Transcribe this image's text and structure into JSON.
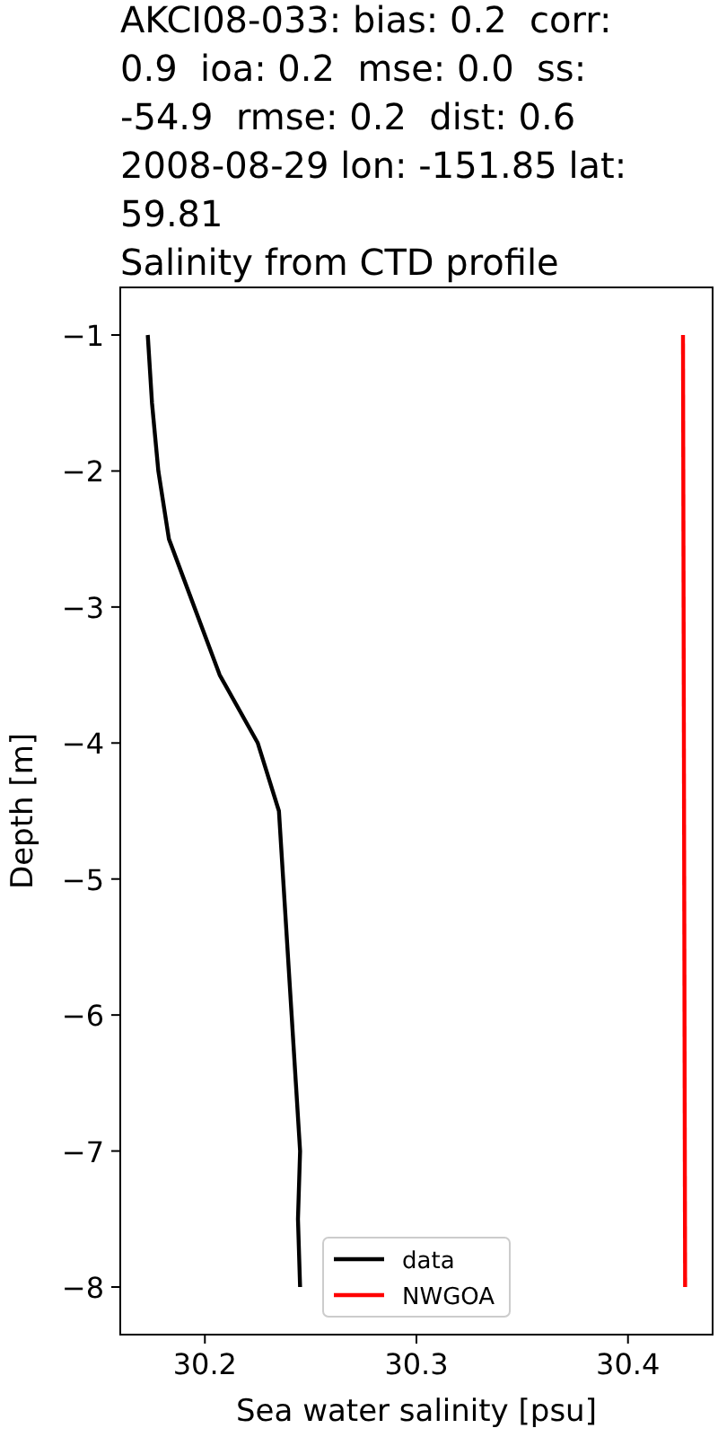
{
  "chart_data": {
    "type": "line",
    "title": "AKCI08-033: bias: 0.2  corr: 0.9  ioa: 0.2  mse: 0.0  ss: -54.9  rmse: 0.2  dist: 0.6 2008-08-29 lon: -151.85 lat: 59.81",
    "subtitle": "Salinity from CTD profile",
    "xlabel": "Sea water salinity [psu]",
    "ylabel": "Depth [m]",
    "xlim": [
      30.16,
      30.44
    ],
    "xticks": [
      30.2,
      30.3,
      30.4
    ],
    "ylim": [
      -8.35,
      -0.65
    ],
    "yticks": [
      -8,
      -7,
      -6,
      -5,
      -4,
      -3,
      -2,
      -1
    ],
    "grid": false,
    "legend": "bottom",
    "line_style": "solid",
    "series": [
      {
        "name": "data",
        "color": "#000000",
        "x": [
          30.173,
          30.175,
          30.178,
          30.183,
          30.195,
          30.207,
          30.225,
          30.235,
          30.237,
          30.239,
          30.241,
          30.243,
          30.245,
          30.244,
          30.245
        ],
        "values": [
          -1,
          -1.5,
          -2,
          -2.5,
          -3,
          -3.5,
          -4,
          -4.5,
          -5,
          -5.5,
          -6,
          -6.5,
          -7,
          -7.5,
          -8
        ]
      },
      {
        "name": "NWGOA",
        "color": "#ff0000",
        "x": [
          30.426,
          30.427
        ],
        "values": [
          -1,
          -8
        ]
      }
    ]
  }
}
